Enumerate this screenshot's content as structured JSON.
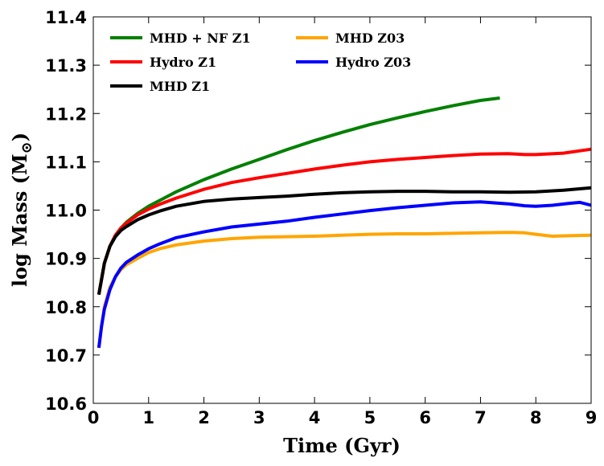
{
  "chart_data": {
    "type": "line",
    "xlabel": "Time (Gyr)",
    "ylabel": "log Mass (M",
    "ylabel_suffix": "⊙",
    "ylabel_close": ")",
    "xlim": [
      0,
      9
    ],
    "ylim": [
      10.6,
      11.4
    ],
    "xticks": [
      0,
      1,
      2,
      3,
      4,
      5,
      6,
      7,
      8,
      9
    ],
    "xtick_labels": [
      "0",
      "1",
      "2",
      "3",
      "4",
      "5",
      "6",
      "7",
      "8",
      "9"
    ],
    "yticks": [
      10.6,
      10.7,
      10.8,
      10.9,
      11.0,
      11.1,
      11.2,
      11.3,
      11.4
    ],
    "ytick_labels": [
      "10.6",
      "10.7",
      "10.8",
      "10.9",
      "11.0",
      "11.1",
      "11.2",
      "11.3",
      "11.4"
    ],
    "grid": false,
    "legend": {
      "placement": "top-left",
      "columns": 2,
      "entries": [
        {
          "label": "MHD + NF Z1",
          "color": "#008000"
        },
        {
          "label": "Hydro Z1",
          "color": "#ff0000"
        },
        {
          "label": "MHD Z1",
          "color": "#000000"
        },
        {
          "label": "MHD Z03",
          "color": "#ffa500"
        },
        {
          "label": "Hydro Z03",
          "color": "#0000ff"
        }
      ]
    },
    "series": [
      {
        "name": "MHD + NF Z1",
        "color": "#008000",
        "x": [
          0.1,
          0.2,
          0.3,
          0.4,
          0.5,
          0.6,
          0.8,
          1.0,
          1.2,
          1.5,
          2.0,
          2.5,
          3.0,
          3.5,
          4.0,
          4.5,
          5.0,
          5.5,
          6.0,
          6.5,
          7.0,
          7.35
        ],
        "y": [
          10.825,
          10.89,
          10.925,
          10.948,
          10.963,
          10.975,
          10.993,
          11.008,
          11.02,
          11.038,
          11.063,
          11.085,
          11.105,
          11.125,
          11.144,
          11.161,
          11.177,
          11.191,
          11.204,
          11.216,
          11.227,
          11.232
        ]
      },
      {
        "name": "Hydro Z1",
        "color": "#ff0000",
        "x": [
          0.1,
          0.2,
          0.3,
          0.4,
          0.5,
          0.6,
          0.8,
          1.0,
          1.2,
          1.5,
          2.0,
          2.5,
          3.0,
          3.5,
          4.0,
          4.5,
          5.0,
          5.5,
          6.0,
          6.5,
          7.0,
          7.5,
          7.8,
          8.0,
          8.5,
          9.0
        ],
        "y": [
          10.825,
          10.89,
          10.925,
          10.948,
          10.963,
          10.973,
          10.99,
          11.002,
          11.012,
          11.025,
          11.043,
          11.057,
          11.067,
          11.076,
          11.085,
          11.093,
          11.1,
          11.105,
          11.109,
          11.113,
          11.116,
          11.117,
          11.115,
          11.115,
          11.118,
          11.126
        ]
      },
      {
        "name": "MHD Z1",
        "color": "#000000",
        "x": [
          0.1,
          0.2,
          0.3,
          0.4,
          0.5,
          0.6,
          0.8,
          1.0,
          1.2,
          1.5,
          2.0,
          2.5,
          3.0,
          3.5,
          4.0,
          4.5,
          5.0,
          5.5,
          6.0,
          6.5,
          7.0,
          7.5,
          8.0,
          8.5,
          9.0
        ],
        "y": [
          10.825,
          10.89,
          10.925,
          10.945,
          10.958,
          10.966,
          10.98,
          10.99,
          10.998,
          11.008,
          11.018,
          11.023,
          11.026,
          11.029,
          11.033,
          11.036,
          11.038,
          11.039,
          11.039,
          11.038,
          11.038,
          11.037,
          11.038,
          11.041,
          11.046
        ]
      },
      {
        "name": "MHD Z03",
        "color": "#ffa500",
        "x": [
          0.1,
          0.15,
          0.2,
          0.3,
          0.4,
          0.5,
          0.6,
          0.8,
          1.0,
          1.2,
          1.5,
          2.0,
          2.5,
          3.0,
          3.5,
          4.0,
          4.5,
          5.0,
          5.5,
          6.0,
          6.5,
          7.0,
          7.5,
          7.8,
          8.0,
          8.3,
          8.6,
          9.0
        ],
        "y": [
          10.715,
          10.76,
          10.8,
          10.84,
          10.862,
          10.877,
          10.887,
          10.9,
          10.912,
          10.92,
          10.928,
          10.936,
          10.941,
          10.944,
          10.945,
          10.946,
          10.948,
          10.95,
          10.951,
          10.951,
          10.952,
          10.953,
          10.954,
          10.953,
          10.95,
          10.946,
          10.947,
          10.948
        ]
      },
      {
        "name": "Hydro Z03",
        "color": "#0000ff",
        "x": [
          0.1,
          0.15,
          0.2,
          0.3,
          0.4,
          0.5,
          0.6,
          0.8,
          1.0,
          1.2,
          1.5,
          2.0,
          2.5,
          3.0,
          3.5,
          4.0,
          4.5,
          5.0,
          5.5,
          6.0,
          6.5,
          7.0,
          7.5,
          7.8,
          8.0,
          8.3,
          8.6,
          8.8,
          9.0
        ],
        "y": [
          10.715,
          10.76,
          10.795,
          10.835,
          10.862,
          10.88,
          10.892,
          10.907,
          10.92,
          10.93,
          10.943,
          10.955,
          10.965,
          10.971,
          10.977,
          10.985,
          10.992,
          10.999,
          11.005,
          11.01,
          11.015,
          11.017,
          11.013,
          11.009,
          11.008,
          11.01,
          11.014,
          11.016,
          11.01
        ]
      }
    ]
  }
}
